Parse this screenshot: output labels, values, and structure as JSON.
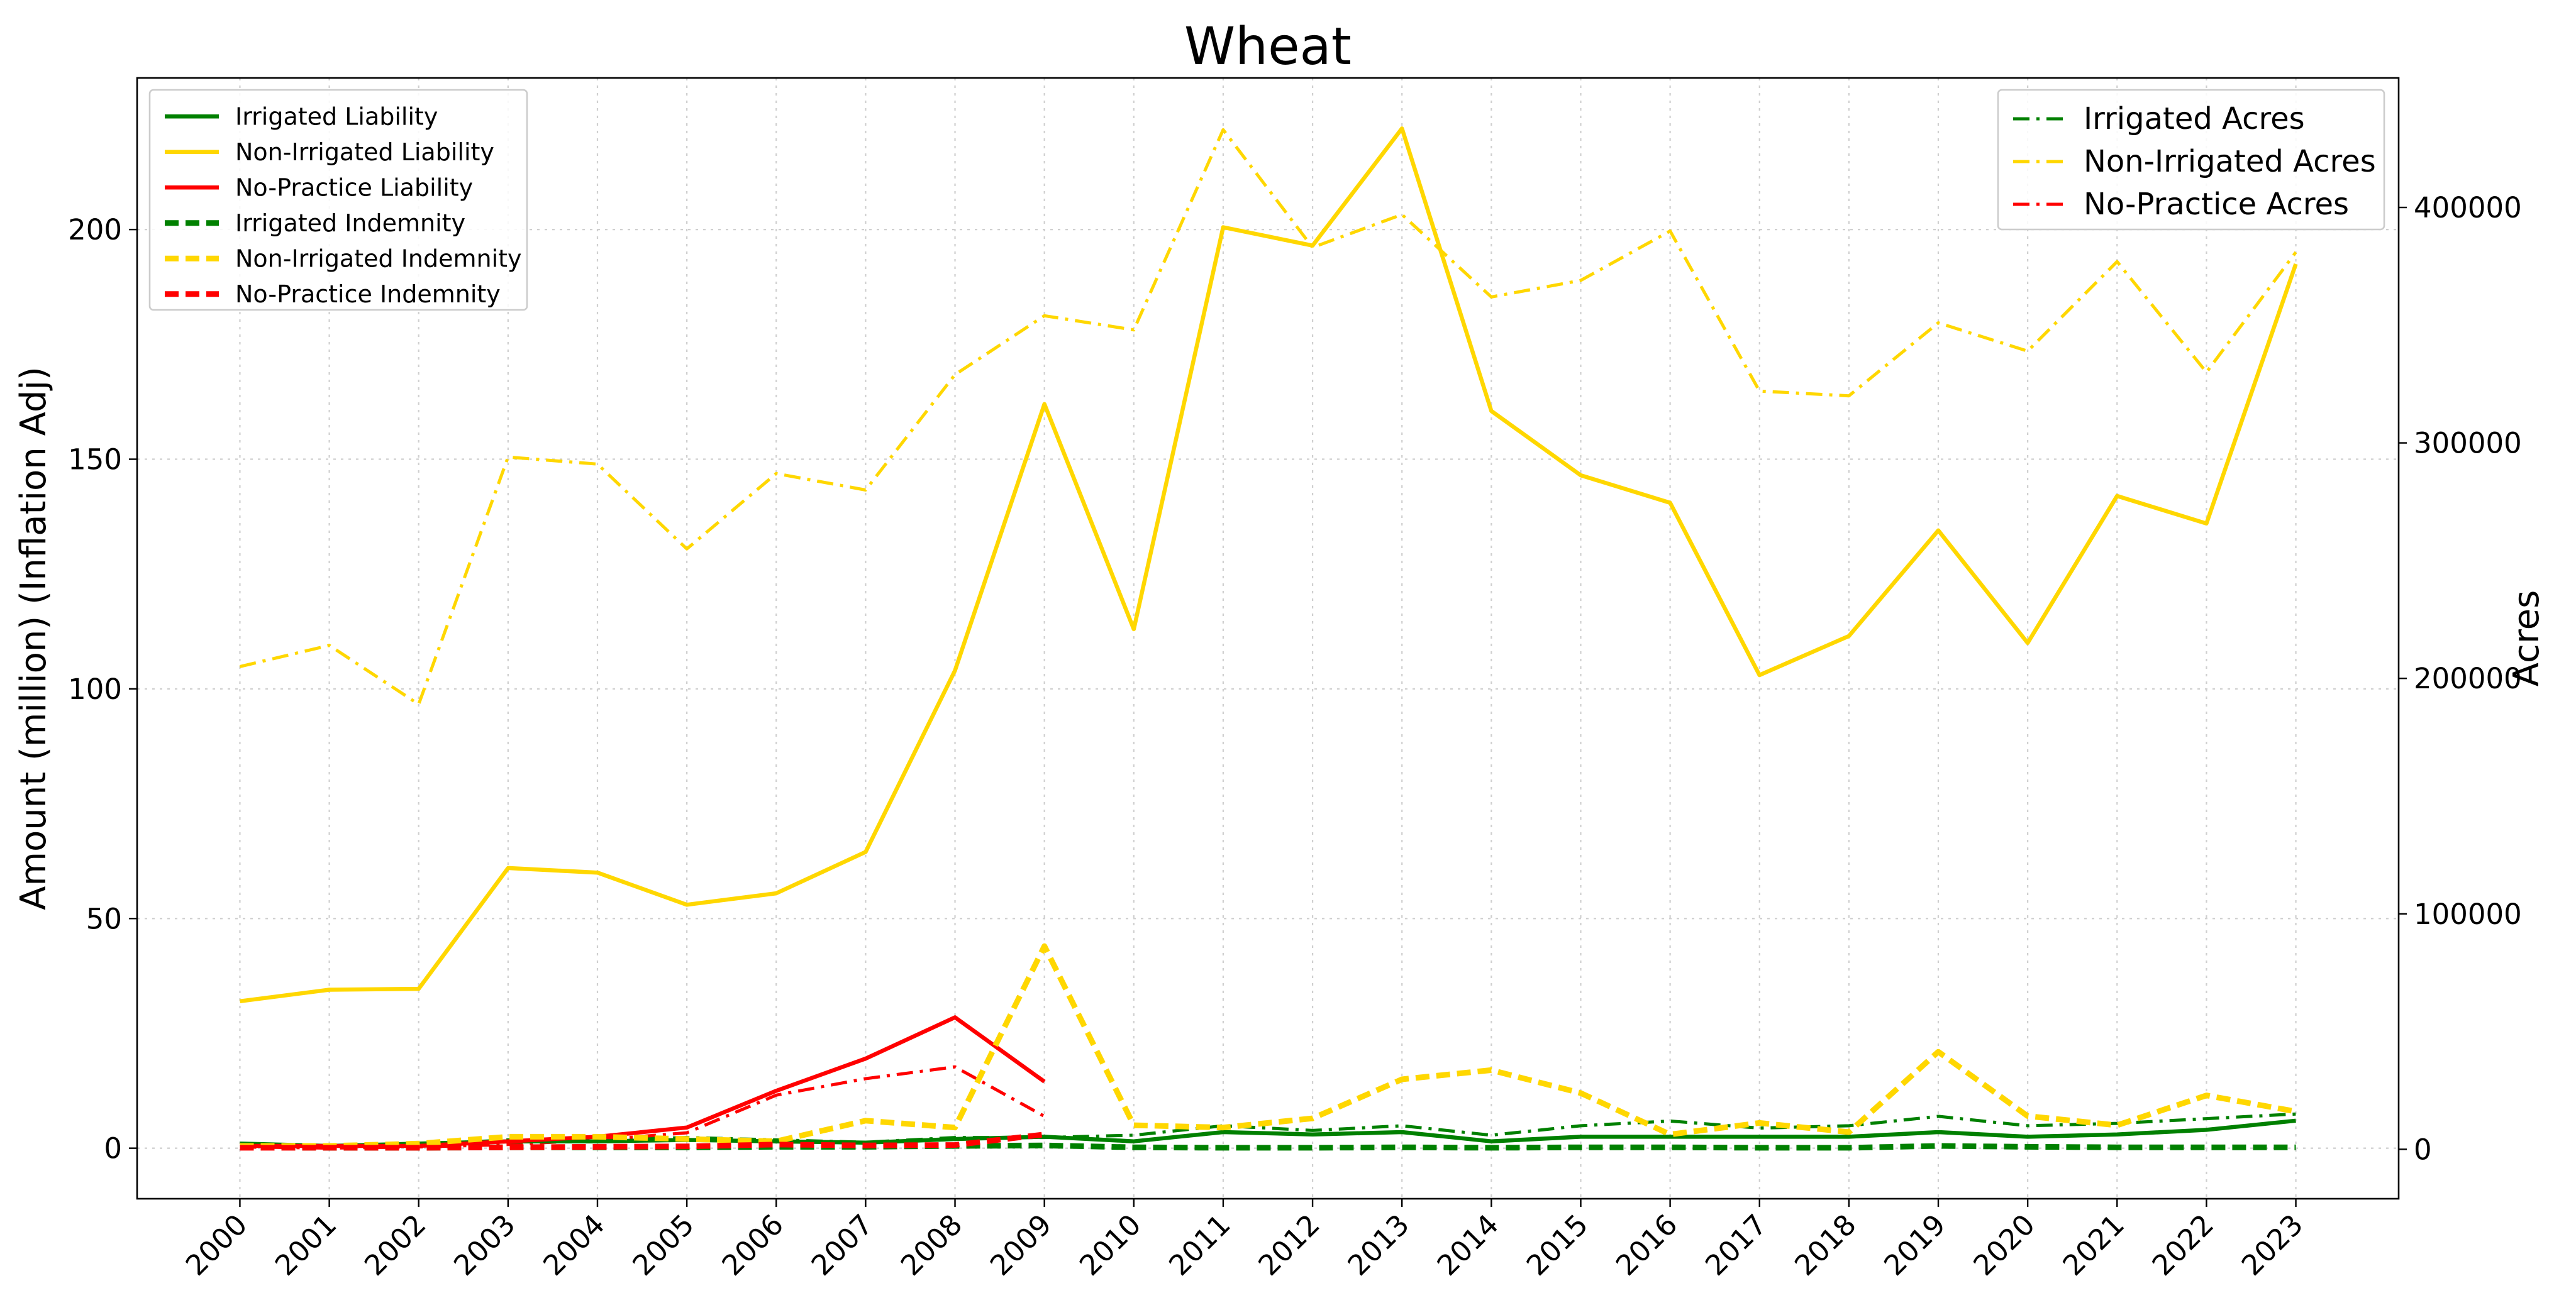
{
  "chart_data": {
    "type": "line",
    "title": "Wheat",
    "xlabel": "",
    "ylabel": "Amount (million) (Inflation Adj)",
    "y2label": "Acres",
    "x": [
      2000,
      2001,
      2002,
      2003,
      2004,
      2005,
      2006,
      2007,
      2008,
      2009,
      2010,
      2011,
      2012,
      2013,
      2014,
      2015,
      2016,
      2017,
      2018,
      2019,
      2020,
      2021,
      2022,
      2023
    ],
    "x_tick_labels": [
      "2000",
      "2001",
      "2002",
      "2003",
      "2004",
      "2005",
      "2006",
      "2007",
      "2008",
      "2009",
      "2010",
      "2011",
      "2012",
      "2013",
      "2014",
      "2015",
      "2016",
      "2017",
      "2018",
      "2019",
      "2020",
      "2021",
      "2022",
      "2023"
    ],
    "ylim": [
      -11,
      233
    ],
    "y_ticks": [
      0,
      50,
      100,
      150,
      200
    ],
    "y_tick_labels": [
      "0",
      "50",
      "100",
      "150",
      "200"
    ],
    "y2lim": [
      -21000,
      455000
    ],
    "y2_ticks": [
      0,
      100000,
      200000,
      300000,
      400000
    ],
    "y2_tick_labels": [
      "0",
      "100000",
      "200000",
      "300000",
      "400000"
    ],
    "grid": true,
    "legend_left_placement": "top-left",
    "legend_right_placement": "top-right",
    "series_left": [
      {
        "name": "Irrigated Liability",
        "color": "#008000",
        "style": "solid",
        "values": [
          1.0,
          0.5,
          1.0,
          1.5,
          1.5,
          1.8,
          1.5,
          1.2,
          2.0,
          2.5,
          1.5,
          3.5,
          3.0,
          3.5,
          1.5,
          2.5,
          2.5,
          2.5,
          2.5,
          3.5,
          2.5,
          3.0,
          4.0,
          6.0
        ]
      },
      {
        "name": "Non-Irrigated Liability",
        "color": "#FFD700",
        "style": "solid",
        "values": [
          32,
          34.5,
          34.7,
          61,
          60,
          53,
          55.5,
          64.5,
          104,
          162,
          113,
          200.5,
          196.5,
          222,
          160.5,
          146.5,
          140.5,
          103,
          111.5,
          134.5,
          110,
          142,
          136,
          192.5
        ]
      },
      {
        "name": "No-Practice Liability",
        "color": "#FF0000",
        "style": "solid",
        "values": [
          0.5,
          0.5,
          0.5,
          1.5,
          2.5,
          4.5,
          12.5,
          19.5,
          28.5,
          14.5,
          null,
          null,
          null,
          null,
          null,
          null,
          null,
          null,
          null,
          null,
          null,
          null,
          null,
          null
        ]
      },
      {
        "name": "Irrigated Indemnity",
        "color": "#008000",
        "style": "dashed",
        "values": [
          0.2,
          0.1,
          0.1,
          0.2,
          0.2,
          0.2,
          0.3,
          0.3,
          0.5,
          0.6,
          0.2,
          0.1,
          0.1,
          0.2,
          0.1,
          0.2,
          0.2,
          0.1,
          0.1,
          0.5,
          0.3,
          0.2,
          0.2,
          0.2
        ]
      },
      {
        "name": "Non-Irrigated Indemnity",
        "color": "#FFD700",
        "style": "dashed",
        "values": [
          0.5,
          0.5,
          1.0,
          2.5,
          2.5,
          2.0,
          1.5,
          6.0,
          4.5,
          44,
          5.0,
          4.5,
          6.5,
          15,
          17,
          12,
          3.0,
          5.5,
          3.5,
          21,
          7.0,
          5.0,
          11.5,
          8.0
        ]
      },
      {
        "name": "No-Practice Indemnity",
        "color": "#FF0000",
        "style": "dashed",
        "values": [
          0.1,
          0.1,
          0.1,
          0.2,
          0.3,
          0.4,
          0.8,
          0.6,
          0.7,
          3.0,
          null,
          null,
          null,
          null,
          null,
          null,
          null,
          null,
          null,
          null,
          null,
          null,
          null,
          null
        ]
      }
    ],
    "series_right": [
      {
        "name": "Irrigated Acres",
        "color": "#008000",
        "style": "dashdot",
        "values": [
          2000,
          1000,
          2000,
          4000,
          4000,
          5000,
          4000,
          3000,
          5000,
          5000,
          6000,
          10000,
          8000,
          10000,
          6000,
          10000,
          12000,
          9000,
          10000,
          14000,
          10000,
          11000,
          13000,
          15000
        ]
      },
      {
        "name": "Non-Irrigated Acres",
        "color": "#FFD700",
        "style": "dashdot",
        "values": [
          205000,
          214000,
          189000,
          294000,
          291000,
          255000,
          287000,
          280000,
          329000,
          354000,
          348000,
          433000,
          383000,
          397000,
          362000,
          369000,
          390000,
          322000,
          320000,
          351000,
          339000,
          377000,
          330000,
          381000
        ]
      },
      {
        "name": "No-Practice Acres",
        "color": "#FF0000",
        "style": "dashdot",
        "values": [
          1000,
          500,
          1000,
          2000,
          4000,
          7000,
          23000,
          30000,
          35000,
          14000,
          null,
          null,
          null,
          null,
          null,
          null,
          null,
          null,
          null,
          null,
          null,
          null,
          null,
          null
        ]
      }
    ]
  }
}
